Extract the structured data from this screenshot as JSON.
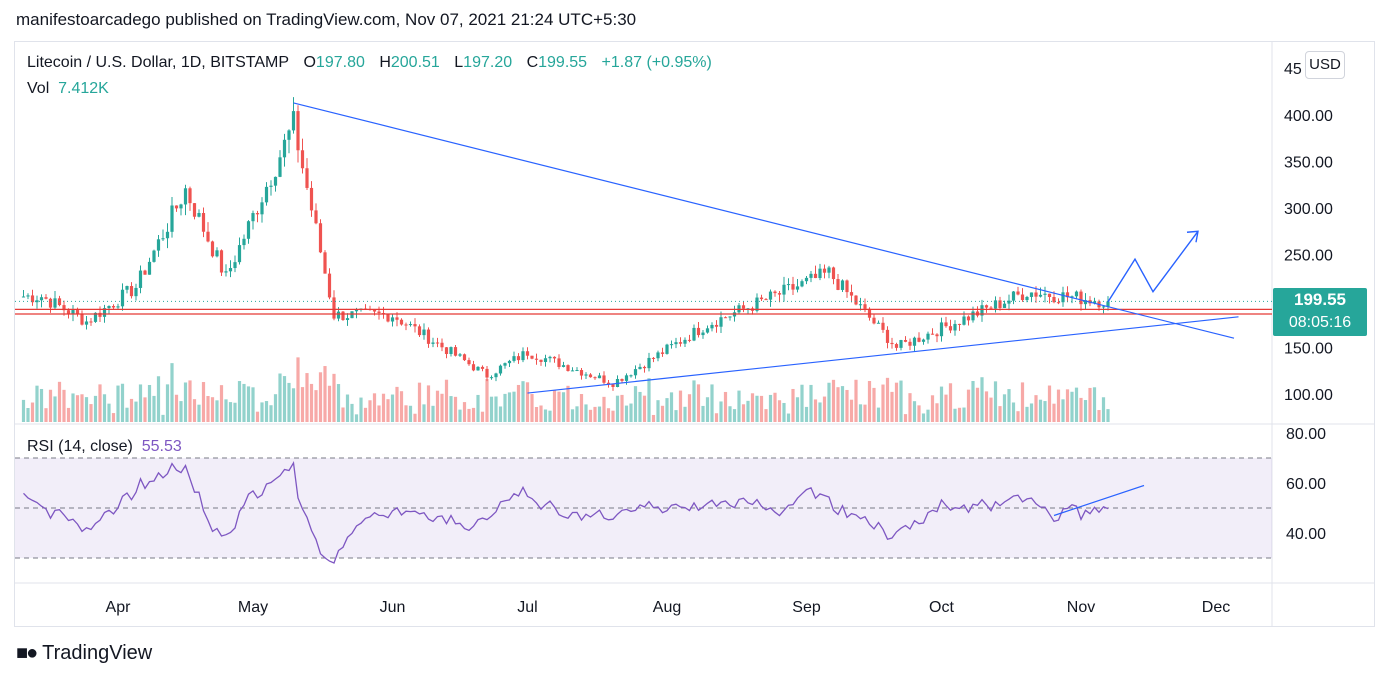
{
  "header": "manifestoarcadego published on TradingView.com, Nov 07, 2021 21:24 UTC+5:30",
  "legend": {
    "symbol": "Litecoin / U.S. Dollar, 1D, BITSTAMP",
    "o_label": "O",
    "o": "197.80",
    "h_label": "H",
    "h": "200.51",
    "l_label": "L",
    "l": "197.20",
    "c_label": "C",
    "c": "199.55",
    "change": "+1.87 (+0.95%)"
  },
  "volume": {
    "label": "Vol",
    "value": "7.412K"
  },
  "rsi": {
    "label": "RSI (14, close)",
    "value": "55.53"
  },
  "currency_button": "USD",
  "last_price": {
    "price": "199.55",
    "countdown": "08:05:16"
  },
  "branding": {
    "logo_icon": "tradingview-logo-icon",
    "name": "TradingView"
  },
  "colors": {
    "up": "#26a69a",
    "down": "#ef5350",
    "trend": "#2962ff",
    "rsi": "#7e57c2",
    "support": "#e53935"
  },
  "chart_data": {
    "type": "candlestick",
    "price_axis": {
      "ticks": [
        "400.00",
        "350.00",
        "300.00",
        "250.00",
        "200.00",
        "150.00",
        "100.00"
      ],
      "range": [
        85,
        460
      ],
      "top_tick_partial": "45"
    },
    "rsi_axis": {
      "ticks": [
        "80.00",
        "60.00",
        "40.00"
      ],
      "bands": [
        70,
        50,
        30
      ]
    },
    "time_axis": [
      "Apr",
      "May",
      "Jun",
      "Jul",
      "Aug",
      "Sep",
      "Oct",
      "Nov",
      "Dec"
    ],
    "key_prices": [
      {
        "date": "2021-03-15",
        "close": 205
      },
      {
        "date": "2021-03-25",
        "close": 178
      },
      {
        "date": "2021-04-05",
        "close": 215
      },
      {
        "date": "2021-04-16",
        "close": 320
      },
      {
        "date": "2021-04-25",
        "close": 225
      },
      {
        "date": "2021-05-10",
        "close": 390
      },
      {
        "date": "2021-05-19",
        "close": 185
      },
      {
        "date": "2021-06-01",
        "close": 185
      },
      {
        "date": "2021-06-22",
        "close": 120
      },
      {
        "date": "2021-07-01",
        "close": 145
      },
      {
        "date": "2021-07-20",
        "close": 112
      },
      {
        "date": "2021-08-10",
        "close": 175
      },
      {
        "date": "2021-09-06",
        "close": 230
      },
      {
        "date": "2021-09-21",
        "close": 150
      },
      {
        "date": "2021-10-20",
        "close": 210
      },
      {
        "date": "2021-11-07",
        "close": 199.55
      }
    ],
    "support_levels": [
      186,
      191
    ],
    "trendlines": [
      {
        "from": {
          "date": "2021-05-10",
          "price": 413
        },
        "to": {
          "date": "2021-12-05",
          "price": 160
        }
      },
      {
        "from": {
          "date": "2021-07-01",
          "price": 101
        },
        "to": {
          "date": "2021-12-06",
          "price": 183
        }
      }
    ],
    "projection": [
      199,
      245,
      210,
      275
    ],
    "last_close": 199.55
  }
}
